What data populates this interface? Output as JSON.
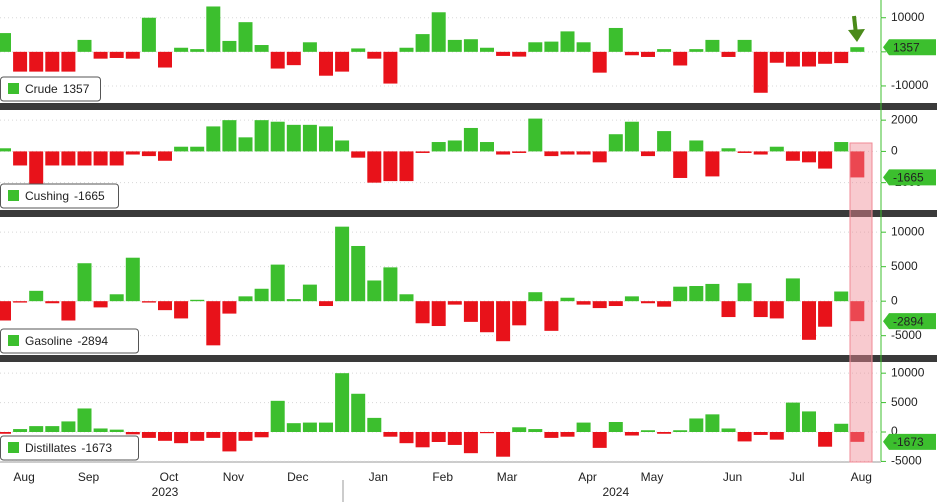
{
  "chart_data": [
    {
      "type": "bar",
      "series": [
        {
          "name": "Crude",
          "values": [
            5500,
            -5800,
            -5800,
            -5800,
            -5800,
            3500,
            -2000,
            -1800,
            -2000,
            10000,
            -4600,
            1200,
            800,
            13300,
            3200,
            8700,
            2000,
            -4900,
            -3900,
            2800,
            -7000,
            -5800,
            1000,
            -2000,
            -9300,
            1200,
            5200,
            11600,
            3500,
            3700,
            1200,
            -1200,
            -1400,
            2800,
            3000,
            6000,
            2800,
            -6100,
            7000,
            -1000,
            -1500,
            800,
            -4000,
            800,
            3500,
            -1500,
            3500,
            -12000,
            -3200,
            -4300,
            -4300,
            -3500,
            -3300,
            1357
          ]
        }
      ],
      "colors": {
        "positive": "#3cbf2e",
        "negative": "#e8121a"
      },
      "ylim": [
        -15000,
        15200
      ],
      "yticks": [
        -10000,
        0,
        10000
      ],
      "grid": true
    },
    {
      "type": "bar",
      "series": [
        {
          "name": "Cushing",
          "values": [
            200,
            -900,
            -3000,
            -900,
            -900,
            -900,
            -900,
            -900,
            -200,
            -300,
            -600,
            300,
            300,
            1600,
            2000,
            900,
            2000,
            1900,
            1700,
            1700,
            1600,
            700,
            -400,
            -2000,
            -1900,
            -1900,
            -100,
            600,
            700,
            1500,
            600,
            -200,
            -100,
            2100,
            -300,
            -200,
            -200,
            -700,
            1100,
            1900,
            -300,
            1300,
            -1700,
            700,
            -1600,
            200,
            -100,
            -200,
            300,
            -600,
            -700,
            -1100,
            600,
            -1665
          ]
        }
      ],
      "colors": {
        "positive": "#3cbf2e",
        "negative": "#e8121a"
      },
      "ylim": [
        -3750,
        2650
      ],
      "yticks": [
        -2000,
        0,
        2000
      ],
      "grid": true
    },
    {
      "type": "bar",
      "series": [
        {
          "name": "Gasoline",
          "values": [
            -2800,
            -200,
            1500,
            -300,
            -2800,
            5500,
            -900,
            1000,
            6300,
            -200,
            -1300,
            -2500,
            200,
            -6400,
            -1800,
            700,
            1800,
            5300,
            300,
            2400,
            -700,
            10800,
            8000,
            3000,
            4900,
            1000,
            -3200,
            -3600,
            -500,
            -3000,
            -4500,
            -5800,
            -3500,
            1300,
            -4300,
            500,
            -500,
            -1000,
            -700,
            700,
            -300,
            -800,
            2100,
            2200,
            2500,
            -2300,
            2600,
            -2300,
            -2500,
            3300,
            -5600,
            -3700,
            1400,
            -2894
          ]
        }
      ],
      "colors": {
        "positive": "#3cbf2e",
        "negative": "#e8121a"
      },
      "ylim": [
        -7800,
        12200
      ],
      "yticks": [
        -5000,
        0,
        5000,
        10000
      ],
      "grid": true
    },
    {
      "type": "bar",
      "series": [
        {
          "name": "Distillates",
          "values": [
            -300,
            500,
            1000,
            1000,
            1800,
            4000,
            600,
            400,
            -400,
            -1000,
            -1500,
            -1900,
            -1500,
            -1000,
            -3300,
            -1500,
            -900,
            5300,
            1500,
            1600,
            1600,
            10000,
            6500,
            2400,
            -800,
            -1900,
            -2600,
            -1700,
            -2200,
            -3600,
            -200,
            -4200,
            800,
            500,
            -1000,
            -800,
            1600,
            -2700,
            1700,
            -600,
            300,
            -300,
            300,
            2300,
            3000,
            600,
            -1600,
            -500,
            -1300,
            5000,
            3500,
            -2500,
            1400,
            -1673
          ]
        }
      ],
      "colors": {
        "positive": "#3cbf2e",
        "negative": "#e8121a"
      },
      "ylim": [
        -5100,
        11900
      ],
      "yticks": [
        -5000,
        0,
        5000,
        10000
      ],
      "grid": true,
      "categories": [
        null,
        "Aug",
        null,
        null,
        null,
        "Sep",
        null,
        null,
        null,
        null,
        "Oct",
        null,
        null,
        null,
        "Nov",
        null,
        null,
        null,
        "Dec",
        null,
        null,
        null,
        null,
        "Jan",
        null,
        null,
        null,
        "Feb",
        null,
        null,
        null,
        "Mar",
        null,
        null,
        null,
        null,
        "Apr",
        null,
        null,
        null,
        "May",
        null,
        null,
        null,
        null,
        "Jun",
        null,
        null,
        null,
        "Jul",
        null,
        null,
        null,
        "Aug"
      ],
      "years": [
        "2023",
        "2024"
      ]
    }
  ]
}
